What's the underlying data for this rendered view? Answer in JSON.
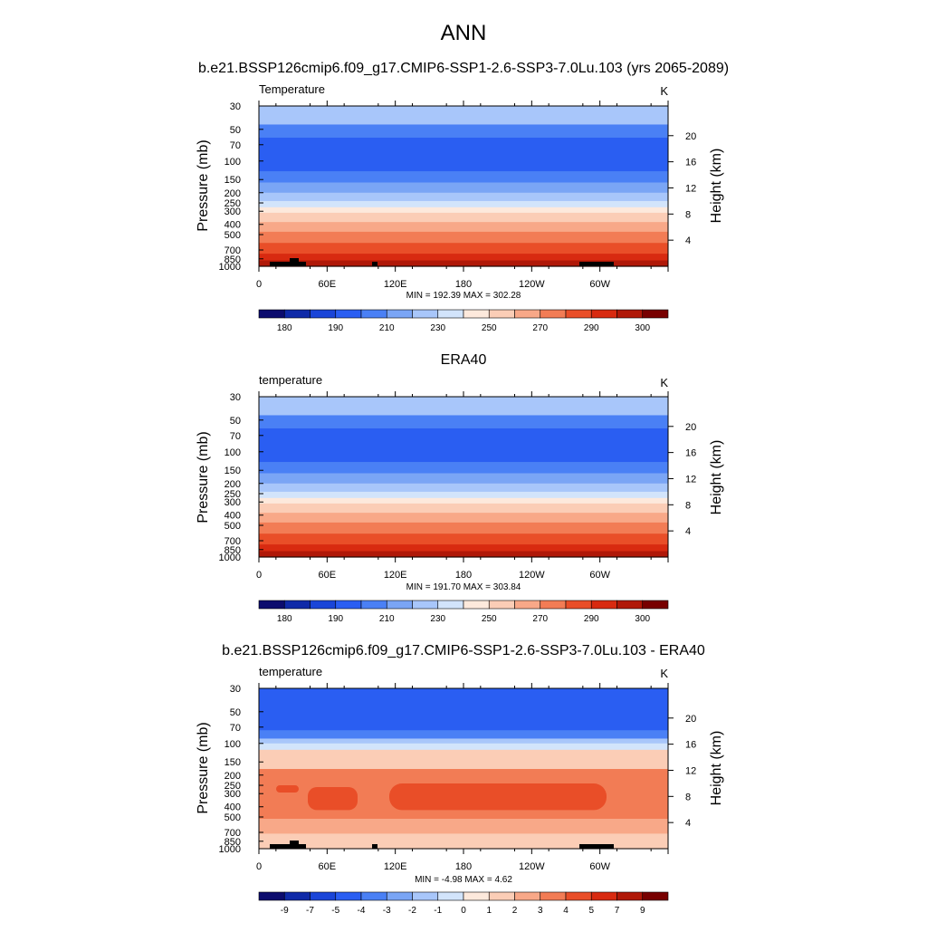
{
  "page": {
    "title": "ANN"
  },
  "colormap": [
    "#0c0c6e",
    "#0f2aa8",
    "#1a45d8",
    "#2a5ef2",
    "#4a80f5",
    "#7aa5f5",
    "#a8c6fa",
    "#d2e4fb",
    "#fde9dc",
    "#fbcdb6",
    "#f8a888",
    "#f27c55",
    "#e94e28",
    "#d82a10",
    "#b01808",
    "#780000"
  ],
  "chart_data": [
    {
      "type": "heatmap",
      "title": "b.e21.BSSP126cmip6.f09_g17.CMIP6-SSP1-2.6-SSP3-7.0Lu.103 (yrs 2065-2089)",
      "left_label": "Temperature",
      "units": "K",
      "ylabel": "Pressure (mb)",
      "y2label": "Height (km)",
      "x_ticks": [
        "0",
        "60E",
        "120E",
        "180",
        "120W",
        "60W"
      ],
      "p_ticks": [
        "30",
        "50",
        "70",
        "100",
        "150",
        "200",
        "250",
        "300",
        "400",
        "500",
        "700",
        "850",
        "1000"
      ],
      "h_ticks": [
        "20",
        "16",
        "12",
        "8",
        "4"
      ],
      "minmax": "MIN = 192.39  MAX = 302.28",
      "colorbar_labels": [
        "180",
        "190",
        "210",
        "230",
        "250",
        "270",
        "290",
        "300"
      ],
      "ylim_mb": [
        1000,
        30
      ],
      "has_topography": true
    },
    {
      "type": "heatmap",
      "title": "ERA40",
      "left_label": "temperature",
      "units": "K",
      "ylabel": "Pressure (mb)",
      "y2label": "Height (km)",
      "x_ticks": [
        "0",
        "60E",
        "120E",
        "180",
        "120W",
        "60W"
      ],
      "p_ticks": [
        "30",
        "50",
        "70",
        "100",
        "150",
        "200",
        "250",
        "300",
        "400",
        "500",
        "700",
        "850",
        "1000"
      ],
      "h_ticks": [
        "20",
        "16",
        "12",
        "8",
        "4"
      ],
      "minmax": "MIN = 191.70  MAX = 303.84",
      "colorbar_labels": [
        "180",
        "190",
        "210",
        "230",
        "250",
        "270",
        "290",
        "300"
      ],
      "ylim_mb": [
        1000,
        30
      ],
      "has_topography": false
    },
    {
      "type": "heatmap",
      "title": "b.e21.BSSP126cmip6.f09_g17.CMIP6-SSP1-2.6-SSP3-7.0Lu.103 - ERA40",
      "left_label": "temperature",
      "units": "K",
      "ylabel": "Pressure (mb)",
      "y2label": "Height (km)",
      "x_ticks": [
        "0",
        "60E",
        "120E",
        "180",
        "120W",
        "60W"
      ],
      "p_ticks": [
        "30",
        "50",
        "70",
        "100",
        "150",
        "200",
        "250",
        "300",
        "400",
        "500",
        "700",
        "850",
        "1000"
      ],
      "h_ticks": [
        "20",
        "16",
        "12",
        "8",
        "4"
      ],
      "minmax": "MIN =  -4.98  MAX =   4.62",
      "colorbar_labels": [
        "-9",
        "-7",
        "-5",
        "-4",
        "-3",
        "-2",
        "-1",
        "0",
        "1",
        "2",
        "3",
        "4",
        "5",
        "7",
        "9"
      ],
      "ylim_mb": [
        1000,
        30
      ],
      "has_topography": true
    }
  ]
}
